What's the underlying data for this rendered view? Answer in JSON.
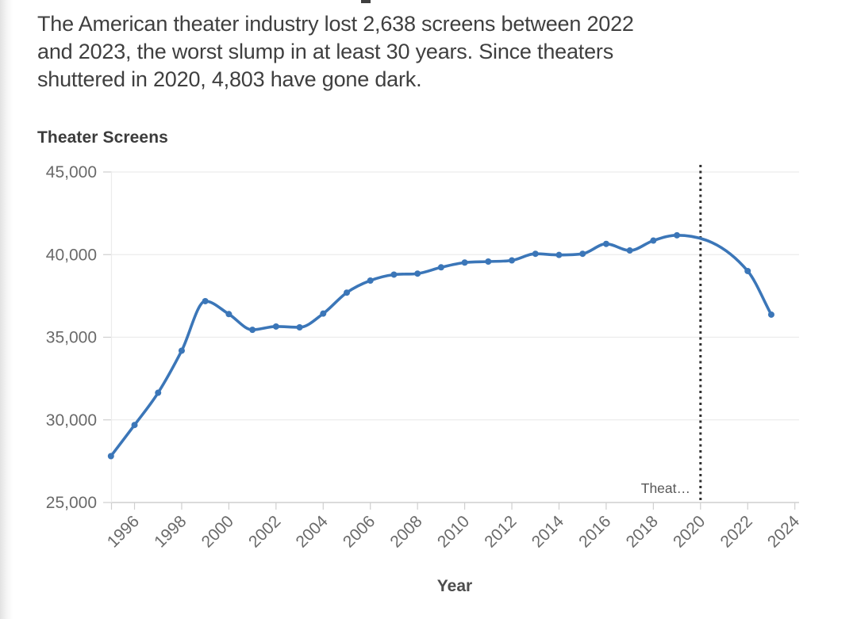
{
  "subtitle": {
    "lines": [
      "The American theater industry lost 2,638 screens between 2022",
      "and 2023, the worst slump in at least 30 years. Since theaters",
      "shuttered in 2020, 4,803 have gone dark."
    ]
  },
  "chart": {
    "title": "Theater Screens",
    "annotation": {
      "label": "Theat…",
      "x_year": 2020
    }
  },
  "chart_data": {
    "type": "line",
    "title": "Theater Screens",
    "xlabel": "Year",
    "ylabel": "",
    "x": [
      1995,
      1996,
      1997,
      1998,
      1999,
      2000,
      2001,
      2002,
      2003,
      2004,
      2005,
      2006,
      2007,
      2008,
      2009,
      2010,
      2011,
      2012,
      2013,
      2014,
      2015,
      2016,
      2017,
      2018,
      2019,
      2022,
      2023
    ],
    "values": [
      27805,
      29690,
      31640,
      34186,
      37185,
      36400,
      35450,
      35650,
      35600,
      36430,
      37700,
      38430,
      38790,
      38850,
      39230,
      39520,
      39580,
      39650,
      40050,
      39980,
      40050,
      40650,
      40250,
      40850,
      41172,
      39007,
      36369
    ],
    "series_name": "Theater Screens",
    "xlim": [
      1995,
      2024.3
    ],
    "ylim": [
      25000,
      45000
    ],
    "y_ticks": [
      25000,
      30000,
      35000,
      40000,
      45000
    ],
    "y_tick_labels": [
      "25,000",
      "30,000",
      "35,000",
      "40,000",
      "45,000"
    ],
    "x_ticks": [
      1996,
      1998,
      2000,
      2002,
      2004,
      2006,
      2008,
      2010,
      2012,
      2014,
      2016,
      2018,
      2020,
      2022,
      2024
    ],
    "grid": "horizontal",
    "legend": "none",
    "annotation_line_x": 2020,
    "annotation_label": "Theat…",
    "colors": {
      "line": "#3b76b8",
      "grid": "#ececec",
      "axis": "#cfcfcf",
      "tick_label": "#6a6a6a",
      "annotation_line": "#2f2f2f"
    }
  }
}
